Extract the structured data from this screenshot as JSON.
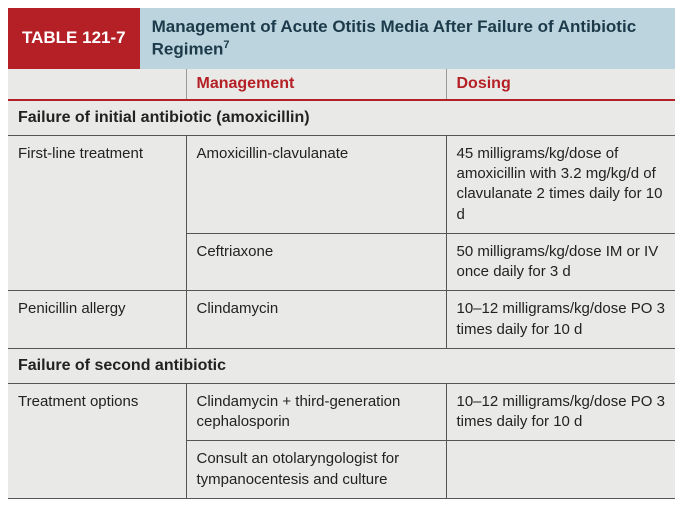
{
  "table": {
    "badge": "TABLE 121-7",
    "title_main": "Management of Acute Otitis Media After Failure of Antibiotic Regimen",
    "title_sup": "7",
    "columns": {
      "c1": "Management",
      "c2": "Dosing"
    },
    "section1": "Failure of initial antibiotic (amoxicillin)",
    "rows1": [
      {
        "label": "First-line treatment",
        "mgmt": "Amoxicillin-clavulanate",
        "dose": "45 milligrams/kg/dose of amoxicillin with 3.2 mg/kg/d of clavulanate 2 times daily for 10 d"
      },
      {
        "label": "",
        "mgmt": "Ceftriaxone",
        "dose": "50 milligrams/kg/dose IM or IV once daily for 3 d"
      },
      {
        "label": "Penicillin allergy",
        "mgmt": "Clindamycin",
        "dose": "10–12 milligrams/kg/dose PO 3 times daily for 10 d"
      }
    ],
    "section2": "Failure of second antibiotic",
    "rows2": [
      {
        "label": "Treatment options",
        "mgmt": "Clindamycin + third-generation cephalosporin",
        "dose": "10–12 milligrams/kg/dose PO 3 times daily for 10 d"
      },
      {
        "label": "",
        "mgmt": "Consult an otolaryngologist for tympanocentesis and culture",
        "dose": ""
      }
    ],
    "colors": {
      "badge_bg": "#b42025",
      "title_bg": "#bcd4de",
      "body_bg": "#e9e9e7",
      "rule": "#555555"
    }
  }
}
